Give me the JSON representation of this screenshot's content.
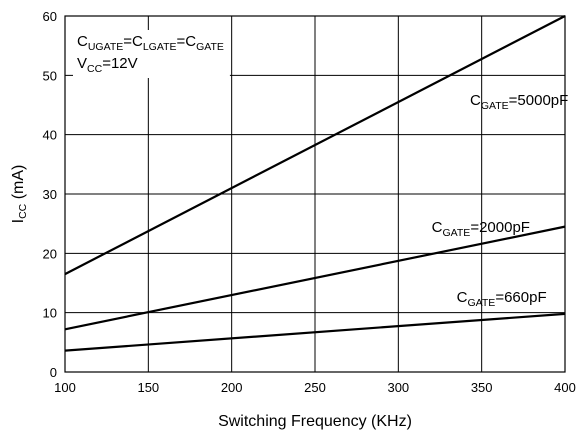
{
  "chart_data": {
    "type": "line",
    "title": "",
    "xlabel": "Switching Frequency (KHz)",
    "ylabel": {
      "main": "I",
      "sub": "CC",
      "unit": " (mA)"
    },
    "xlim": [
      100,
      400
    ],
    "ylim": [
      0,
      60
    ],
    "xticks": [
      100,
      150,
      200,
      250,
      300,
      350,
      400
    ],
    "yticks": [
      0,
      10,
      20,
      30,
      40,
      50,
      60
    ],
    "grid": true,
    "series": [
      {
        "name": "C_GATE=5000pF",
        "x": [
          100,
          400
        ],
        "y": [
          16.5,
          60
        ]
      },
      {
        "name": "C_GATE=2000pF",
        "x": [
          100,
          400
        ],
        "y": [
          7.2,
          24.5
        ]
      },
      {
        "name": "C_GATE=660pF",
        "x": [
          100,
          400
        ],
        "y": [
          3.6,
          9.8
        ]
      }
    ],
    "annotations": {
      "conditions": {
        "line1": [
          {
            "t": "C",
            "s": false
          },
          {
            "t": "UGATE",
            "s": true
          },
          {
            "t": "=C",
            "s": false
          },
          {
            "t": "LGATE",
            "s": true
          },
          {
            "t": "=C",
            "s": false
          },
          {
            "t": "GATE",
            "s": true
          }
        ],
        "line2": [
          {
            "t": "V",
            "s": false
          },
          {
            "t": "CC",
            "s": true
          },
          {
            "t": "=12V",
            "s": false
          }
        ]
      },
      "series_labels": [
        {
          "parts": [
            {
              "t": "C",
              "s": false
            },
            {
              "t": "GATE",
              "s": true
            },
            {
              "t": "=5000pF",
              "s": false
            }
          ],
          "at": [
            343,
            45
          ]
        },
        {
          "parts": [
            {
              "t": "C",
              "s": false
            },
            {
              "t": "GATE",
              "s": true
            },
            {
              "t": "=2000pF",
              "s": false
            }
          ],
          "at": [
            320,
            23.6
          ]
        },
        {
          "parts": [
            {
              "t": "C",
              "s": false
            },
            {
              "t": "GATE",
              "s": true
            },
            {
              "t": "=660pF",
              "s": false
            }
          ],
          "at": [
            335,
            11.8
          ]
        }
      ]
    }
  }
}
